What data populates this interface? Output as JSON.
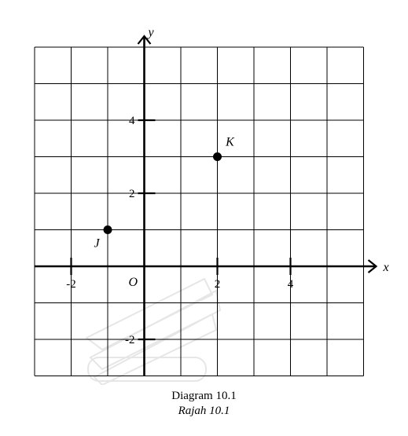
{
  "diagram": {
    "axis_x_label": "x",
    "axis_y_label": "y",
    "origin_label": "O",
    "x_range": [
      -3,
      6
    ],
    "y_range": [
      -3,
      6
    ],
    "grid": true,
    "x_ticks": [
      {
        "value": -2,
        "label": "-2"
      },
      {
        "value": 2,
        "label": "2"
      },
      {
        "value": 4,
        "label": "4"
      }
    ],
    "y_ticks": [
      {
        "value": 4,
        "label": "4"
      },
      {
        "value": 2,
        "label": "2"
      },
      {
        "value": -2,
        "label": "-2"
      }
    ],
    "points": [
      {
        "label": "J",
        "x": -1,
        "y": 1
      },
      {
        "label": "K",
        "x": 2,
        "y": 3
      }
    ]
  },
  "caption": {
    "title": "Diagram 10.1",
    "subtitle": "Rajah 10.1"
  }
}
